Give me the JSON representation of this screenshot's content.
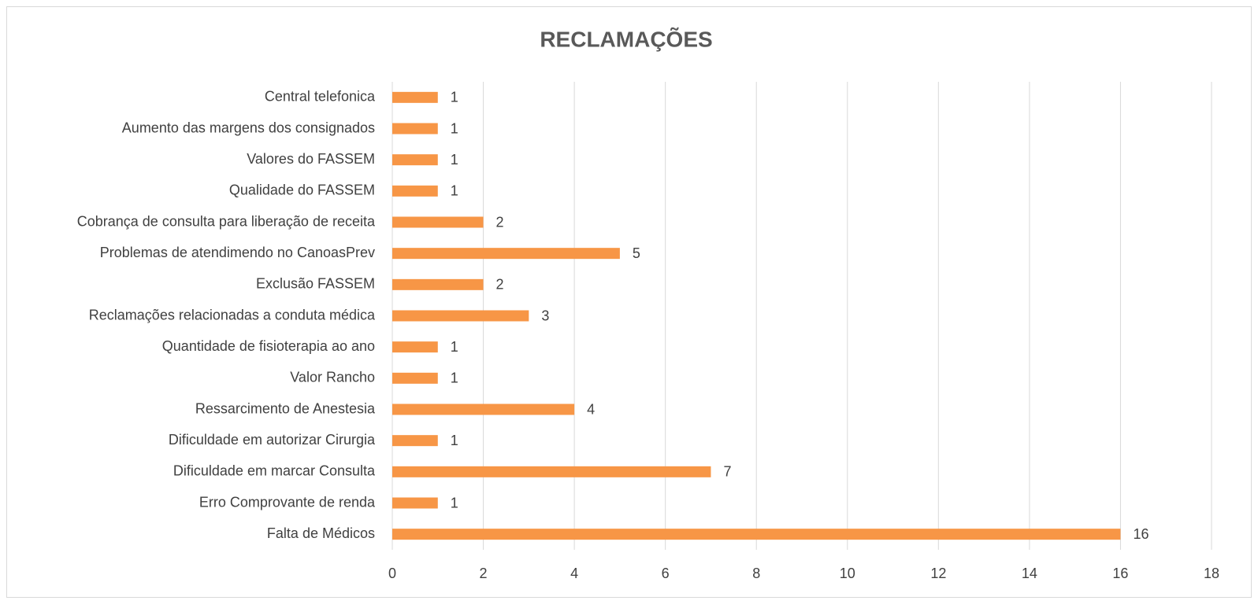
{
  "chart_data": {
    "type": "bar",
    "orientation": "horizontal",
    "title": "RECLAMAÇÕES",
    "categories": [
      "Central telefonica",
      "Aumento das margens dos consignados",
      "Valores do FASSEM",
      "Qualidade do FASSEM",
      "Cobrança de consulta para liberação de receita",
      "Problemas de atendimendo no CanoasPrev",
      "Exclusão FASSEM",
      "Reclamações relacionadas a conduta médica",
      "Quantidade de fisioterapia ao ano",
      "Valor Rancho",
      "Ressarcimento de Anestesia",
      "Dificuldade em autorizar Cirurgia",
      "Dificuldade em marcar Consulta",
      "Erro Comprovante de renda",
      "Falta de Médicos"
    ],
    "values": [
      1,
      1,
      1,
      1,
      2,
      5,
      2,
      3,
      1,
      1,
      4,
      1,
      7,
      1,
      16
    ],
    "color": "#f79646",
    "xlim": [
      0,
      18
    ],
    "xticks": [
      0,
      2,
      4,
      6,
      8,
      10,
      12,
      14,
      16,
      18
    ],
    "grid": true
  }
}
